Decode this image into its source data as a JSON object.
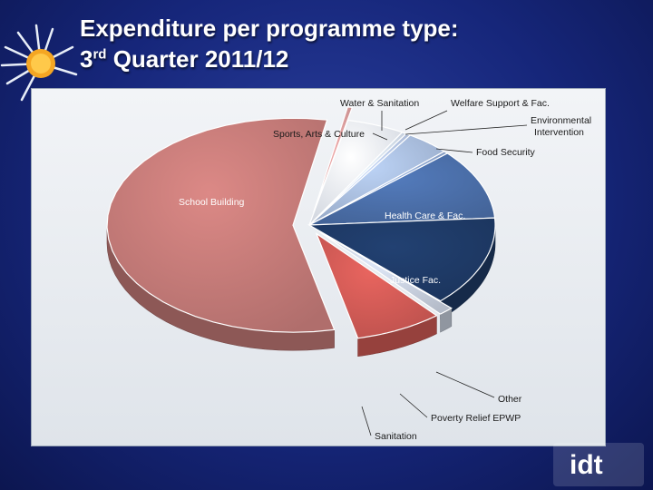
{
  "slide": {
    "title_line1": "Expenditure per programme type:",
    "title_line2_prefix": "3",
    "title_line2_sup": "rd",
    "title_line2_suffix": " Quarter 2011/12",
    "logo_text": "idt"
  },
  "colors": {
    "background": "#16267a",
    "title": "#ffffff",
    "school_building": "#d99b9b",
    "water_sanitation": "#e8eef8",
    "sports_arts": "#d4def0",
    "welfare": "#b8c8e6",
    "environmental": "#a8bcdc",
    "food_security": "#8ea7d0",
    "health_care": "#4a6ea8",
    "justice": "#1e3a66",
    "other": "#c8d0de",
    "poverty_relief": "#d05a55",
    "sanitation": "#c47a78"
  },
  "chart_data": {
    "type": "pie",
    "title": "",
    "labels": [
      "School Building",
      "Water & Sanitation",
      "Welfare Support & Fac.",
      "Sports, Arts & Culture",
      "Environmental Intervention",
      "Food Security",
      "Health Care & Fac.",
      "Justice Fac.",
      "Other",
      "Poverty Relief EPWP",
      "Sanitation"
    ],
    "label_lines": [
      [
        "School Building"
      ],
      [
        "Water & Sanitation"
      ],
      [
        "Welfare Support  & Fac."
      ],
      [
        "Sports, Arts & Culture"
      ],
      [
        "Environmental",
        "Intervention"
      ],
      [
        "Food Security"
      ],
      [
        "Health Care & Fac."
      ],
      [
        "Justice Fac."
      ],
      [
        "Other"
      ],
      [
        "Poverty Relief EPWP"
      ],
      [
        "Sanitation"
      ]
    ],
    "slice_order": [
      "Water & Sanitation",
      "Sports, Arts & Culture",
      "Welfare Support & Fac.",
      "Environmental Intervention",
      "Food Security",
      "Health Care & Fac.",
      "Justice Fac.",
      "Other",
      "Poverty Relief EPWP",
      "Sanitation",
      "School Building"
    ],
    "values": [
      0.4,
      5.0,
      0.4,
      0.4,
      3.8,
      0.4,
      10.6,
      13.6,
      1.3,
      7.6,
      56.5
    ],
    "value_unit": "percent (estimated)",
    "legend": "none",
    "exploded": [
      "School Building",
      "Sanitation",
      "Poverty Relief EPWP",
      "Other"
    ]
  }
}
